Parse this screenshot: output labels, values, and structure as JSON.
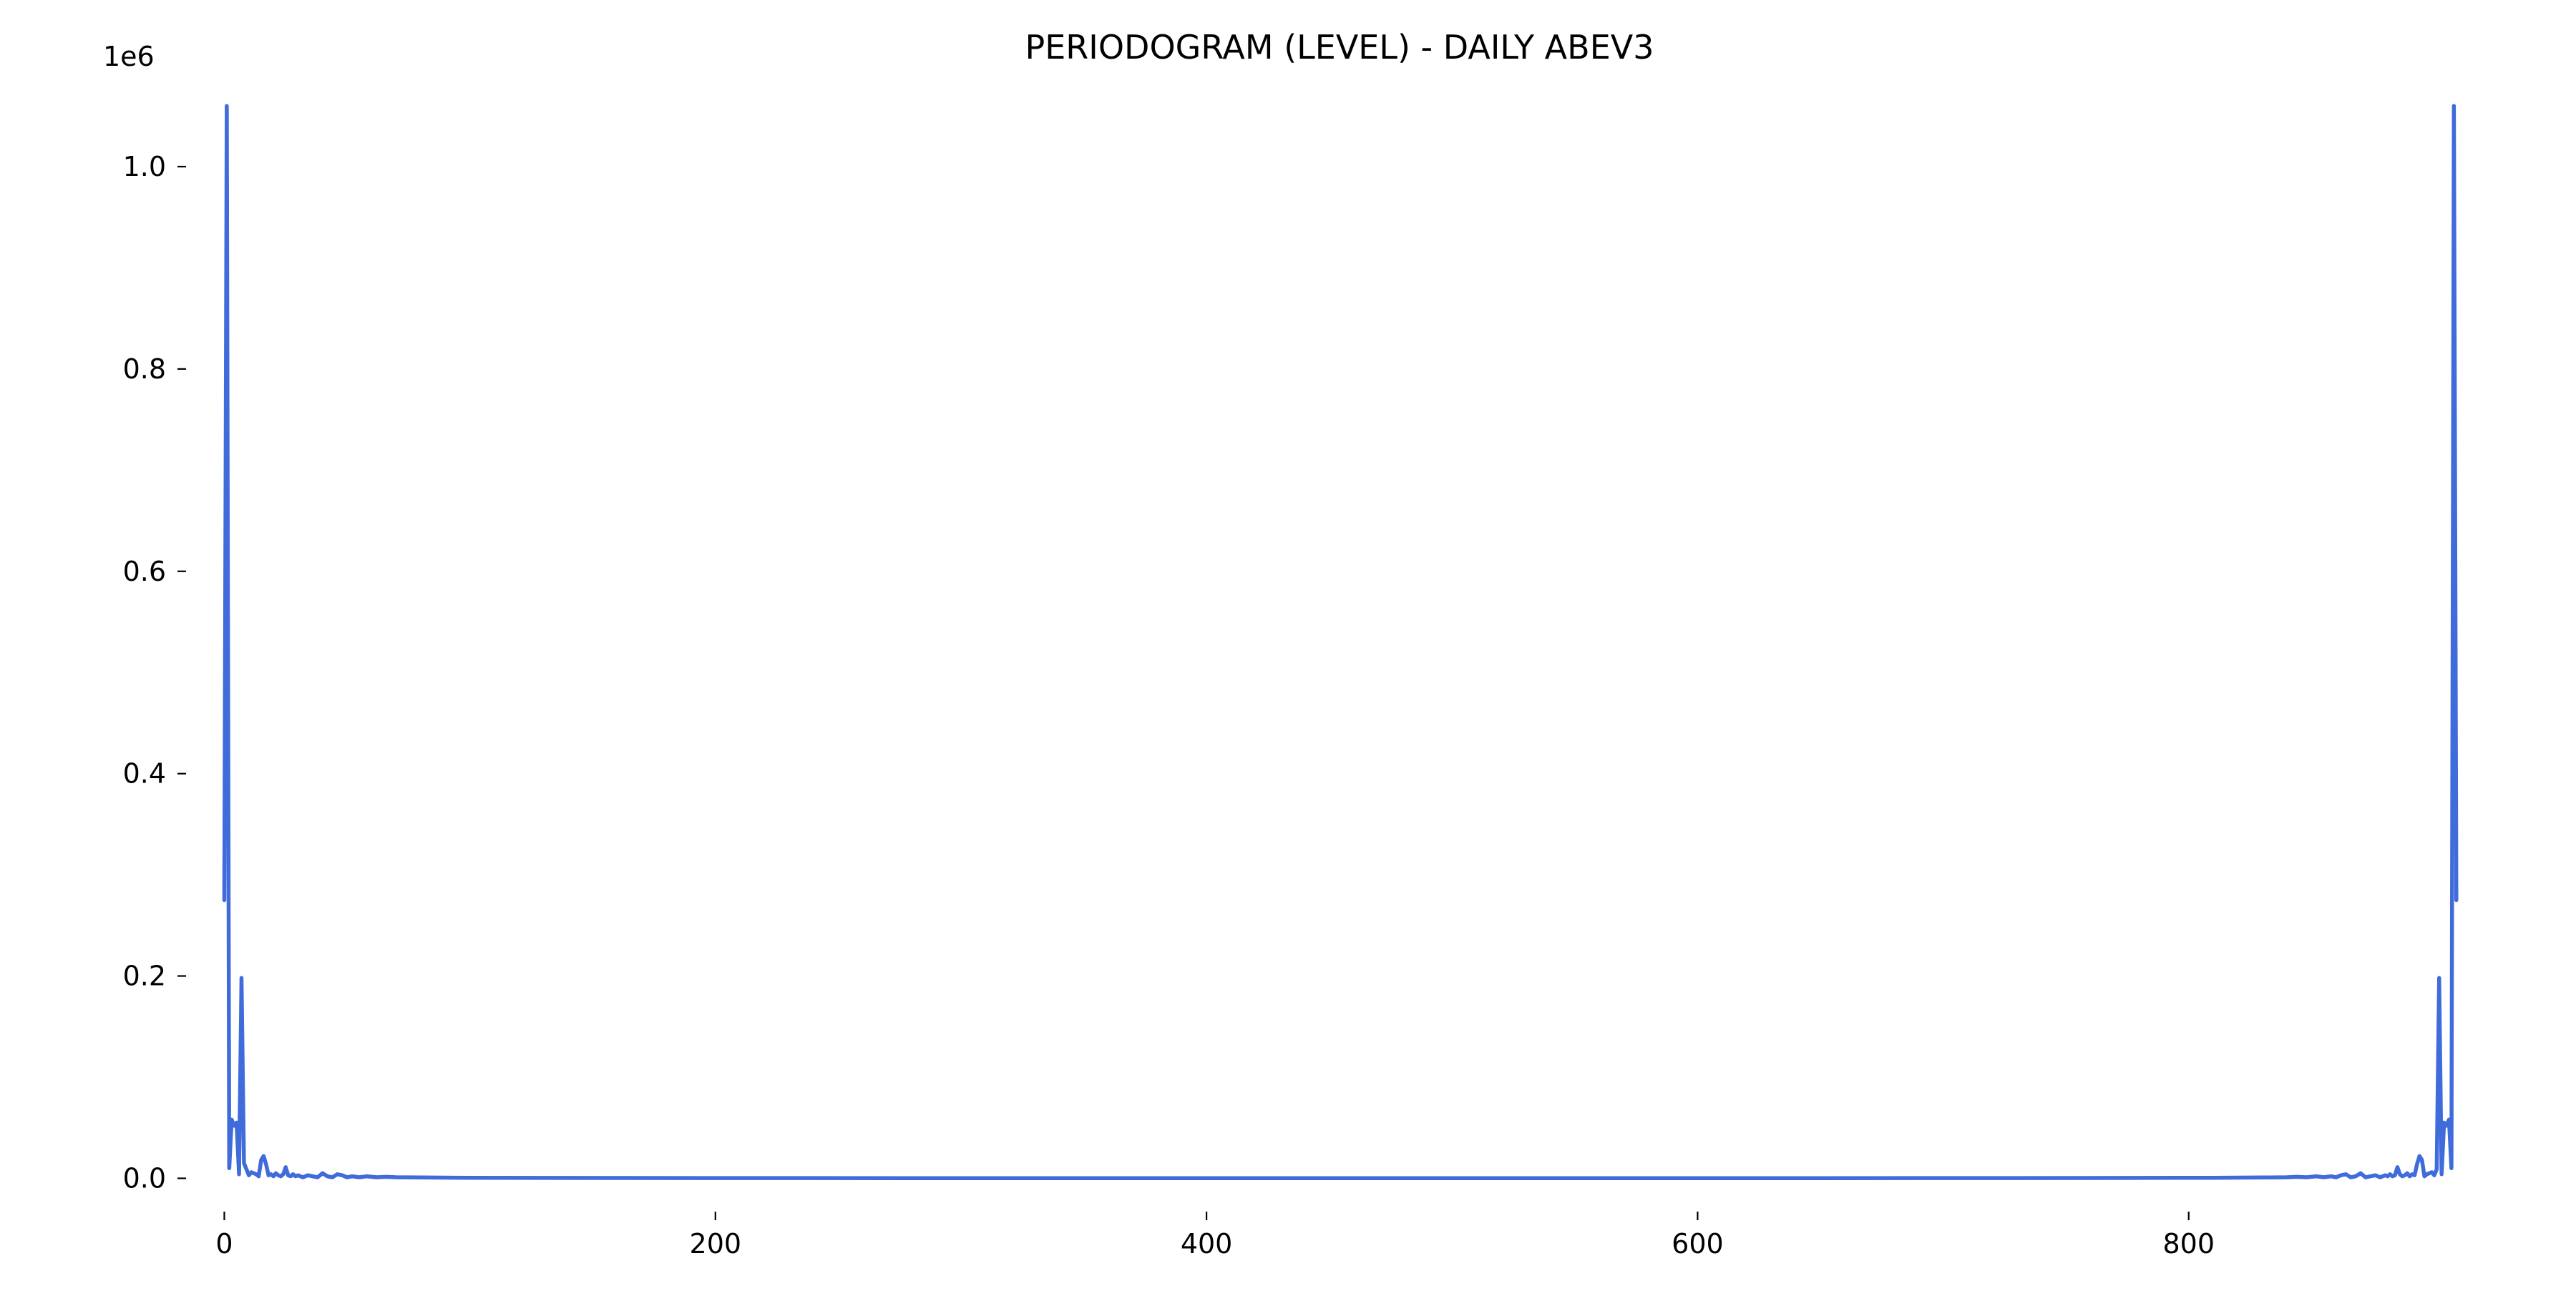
{
  "chart_data": {
    "type": "line",
    "title": "PERIODOGRAM (LEVEL) - DAILY ABEV3",
    "xlabel": "",
    "ylabel": "",
    "y_offset_label": "1e6",
    "xlim": [
      -15,
      935
    ],
    "ylim": [
      -0.0315,
      1.0615
    ],
    "x_ticks": [
      0,
      200,
      400,
      600,
      800
    ],
    "x_tick_labels": [
      "0",
      "200",
      "400",
      "600",
      "800"
    ],
    "y_ticks": [
      0.0,
      0.2,
      0.4,
      0.6,
      0.8,
      1.0
    ],
    "y_tick_labels": [
      "0.0",
      "0.2",
      "0.4",
      "0.6",
      "0.8",
      "1.0"
    ],
    "y_unit_multiplier": 1000000,
    "n": 910,
    "grid": false,
    "frame": false,
    "color": "#3f6bdb",
    "series_points_1e6": [
      [
        0,
        0.275
      ],
      [
        1,
        1.06
      ],
      [
        2,
        0.01
      ],
      [
        3,
        0.058
      ],
      [
        4,
        0.052
      ],
      [
        5,
        0.055
      ],
      [
        6,
        0.004
      ],
      [
        7,
        0.198
      ],
      [
        8,
        0.015
      ],
      [
        9,
        0.009
      ],
      [
        10,
        0.003
      ],
      [
        11,
        0.006
      ],
      [
        12,
        0.005
      ],
      [
        13,
        0.004
      ],
      [
        14,
        0.002
      ],
      [
        15,
        0.018
      ],
      [
        16,
        0.022
      ],
      [
        17,
        0.014
      ],
      [
        18,
        0.003
      ],
      [
        19,
        0.004
      ],
      [
        20,
        0.002
      ],
      [
        21,
        0.005
      ],
      [
        22,
        0.003
      ],
      [
        23,
        0.002
      ],
      [
        24,
        0.004
      ],
      [
        25,
        0.011
      ],
      [
        26,
        0.003
      ],
      [
        27,
        0.002
      ],
      [
        28,
        0.004
      ],
      [
        29,
        0.002
      ],
      [
        30,
        0.003
      ],
      [
        32,
        0.001
      ],
      [
        34,
        0.003
      ],
      [
        36,
        0.002
      ],
      [
        38,
        0.001
      ],
      [
        40,
        0.005
      ],
      [
        42,
        0.002
      ],
      [
        44,
        0.001
      ],
      [
        46,
        0.004
      ],
      [
        48,
        0.003
      ],
      [
        50,
        0.001
      ],
      [
        52,
        0.002
      ],
      [
        55,
        0.001
      ],
      [
        58,
        0.002
      ],
      [
        62,
        0.001
      ],
      [
        66,
        0.0015
      ],
      [
        70,
        0.001
      ],
      [
        80,
        0.0008
      ],
      [
        100,
        0.0005
      ],
      [
        200,
        0.0002
      ],
      [
        455,
        0.0001
      ],
      [
        710,
        0.0002
      ],
      [
        810,
        0.0005
      ],
      [
        830,
        0.0008
      ],
      [
        840,
        0.001
      ],
      [
        844,
        0.0015
      ],
      [
        848,
        0.001
      ],
      [
        852,
        0.002
      ],
      [
        855,
        0.001
      ],
      [
        858,
        0.002
      ],
      [
        860,
        0.001
      ],
      [
        862,
        0.003
      ],
      [
        864,
        0.004
      ],
      [
        866,
        0.001
      ],
      [
        868,
        0.002
      ],
      [
        870,
        0.005
      ],
      [
        872,
        0.001
      ],
      [
        874,
        0.002
      ],
      [
        876,
        0.003
      ],
      [
        878,
        0.001
      ],
      [
        880,
        0.003
      ],
      [
        881,
        0.002
      ],
      [
        882,
        0.004
      ],
      [
        883,
        0.002
      ],
      [
        884,
        0.003
      ],
      [
        885,
        0.011
      ],
      [
        886,
        0.004
      ],
      [
        887,
        0.002
      ],
      [
        888,
        0.003
      ],
      [
        889,
        0.005
      ],
      [
        890,
        0.002
      ],
      [
        891,
        0.004
      ],
      [
        892,
        0.003
      ],
      [
        893,
        0.014
      ],
      [
        894,
        0.022
      ],
      [
        895,
        0.018
      ],
      [
        896,
        0.002
      ],
      [
        897,
        0.004
      ],
      [
        898,
        0.005
      ],
      [
        899,
        0.006
      ],
      [
        900,
        0.003
      ],
      [
        901,
        0.009
      ],
      [
        902,
        0.198
      ],
      [
        903,
        0.004
      ],
      [
        904,
        0.055
      ],
      [
        905,
        0.052
      ],
      [
        906,
        0.058
      ],
      [
        907,
        0.01
      ],
      [
        908,
        1.06
      ],
      [
        909,
        0.275
      ]
    ]
  }
}
